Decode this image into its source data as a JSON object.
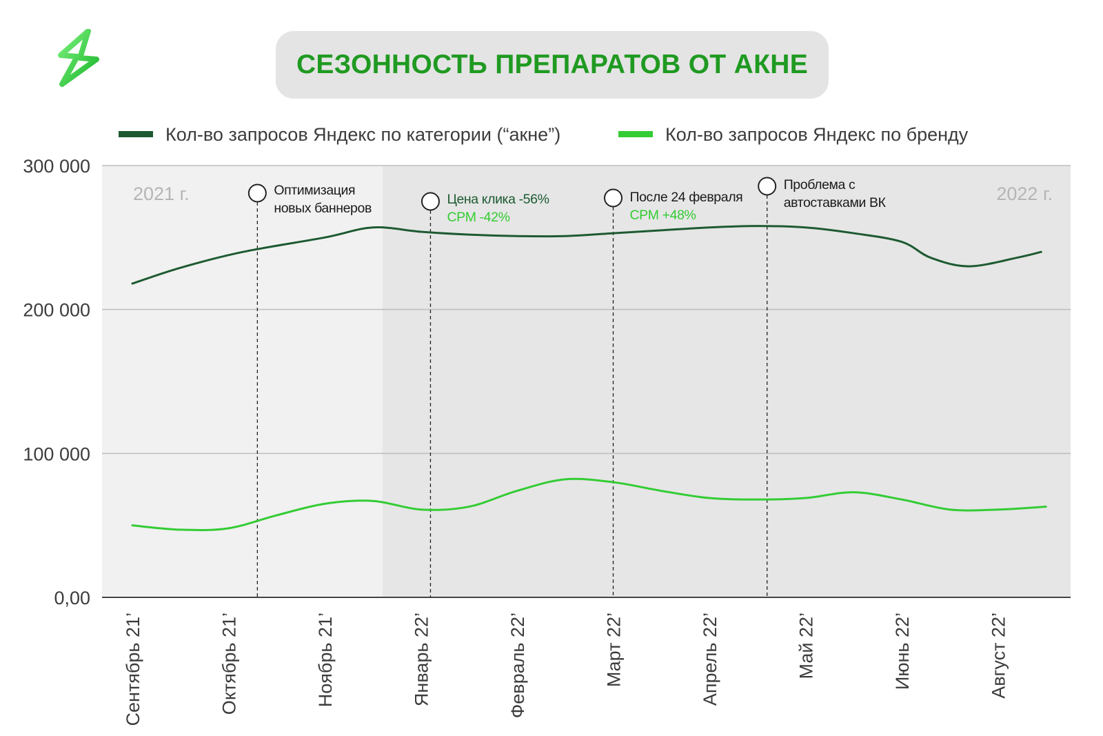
{
  "title": "СЕЗОННОСТЬ ПРЕПАРАТОВ ОТ АКНЕ",
  "logo_icon": "lightning-logo-icon",
  "colors": {
    "dark_series": "#1d5a31",
    "light_series": "#33cc33",
    "title": "#1f9a21",
    "title_bg": "#e4e4e4",
    "period_2021_bg": "#f1f1f1",
    "period_2022_bg": "#e6e6e6"
  },
  "chart_data": {
    "type": "line",
    "title": "СЕЗОННОСТЬ ПРЕПАРАТОВ ОТ АКНЕ",
    "categories": [
      "Сентябрь 21’",
      "Октябрь 21’",
      "Ноябрь 21’",
      "Январь 22’",
      "Февраль 22’",
      "Март 22’",
      "Апрель 22’",
      "Май 22’",
      "Июнь 22’",
      "Август 22’"
    ],
    "y_ticks": [
      "300 000",
      "200 000",
      "100 000",
      "0,00"
    ],
    "ylim": [
      0,
      300000
    ],
    "grid": true,
    "legend_position": "top",
    "series": [
      {
        "name": "Кол-во запросов Яндекс по категории (“акне”)",
        "color": "#1d5a31",
        "x": [
          0,
          0.5,
          1.15,
          2.0,
          2.5,
          3.0,
          3.5,
          4.0,
          4.5,
          5.0,
          5.5,
          6.0,
          6.5,
          7.0,
          7.5,
          8.0,
          8.3,
          8.7,
          9.2,
          9.45
        ],
        "values": [
          218000,
          229000,
          240000,
          250000,
          257000,
          254000,
          252000,
          251000,
          251000,
          253000,
          255000,
          257000,
          258000,
          257000,
          253000,
          247000,
          236000,
          230000,
          236000,
          240000
        ]
      },
      {
        "name": "Кол-во запросов Яндекс по бренду",
        "color": "#33cc33",
        "x": [
          0,
          0.5,
          1.0,
          1.5,
          2.0,
          2.5,
          3.0,
          3.5,
          4.0,
          4.5,
          5.0,
          5.5,
          6.0,
          6.5,
          7.0,
          7.5,
          8.0,
          8.5,
          9.0,
          9.5
        ],
        "values": [
          50000,
          47000,
          48000,
          57000,
          65000,
          67000,
          61000,
          63000,
          74000,
          82000,
          80000,
          74000,
          69000,
          68000,
          69000,
          73000,
          68000,
          61000,
          61000,
          63000
        ]
      }
    ],
    "periods": [
      {
        "label": "2021 г.",
        "x_range": [
          -0.4,
          2.6
        ]
      },
      {
        "label": "2022 г.",
        "x_range": [
          2.6,
          9.9
        ]
      }
    ],
    "annotations": [
      {
        "x": 1.3,
        "lines": [
          {
            "text": "Оптимизация",
            "color": "dark"
          },
          {
            "text": "новых баннеров",
            "color": "dark"
          }
        ]
      },
      {
        "x": 3.1,
        "lines": [
          {
            "text": "Цена клика -56%",
            "color": "dark"
          },
          {
            "text": "CPM -42%",
            "color": "light"
          }
        ]
      },
      {
        "x": 5.0,
        "lines": [
          {
            "text": "После 24 февраля",
            "color": "dark"
          },
          {
            "text": "CPM +48%",
            "color": "light"
          }
        ]
      },
      {
        "x": 6.6,
        "lines": [
          {
            "text": "Проблема с",
            "color": "dark"
          },
          {
            "text": "автоставками ВК",
            "color": "dark"
          }
        ]
      }
    ]
  }
}
